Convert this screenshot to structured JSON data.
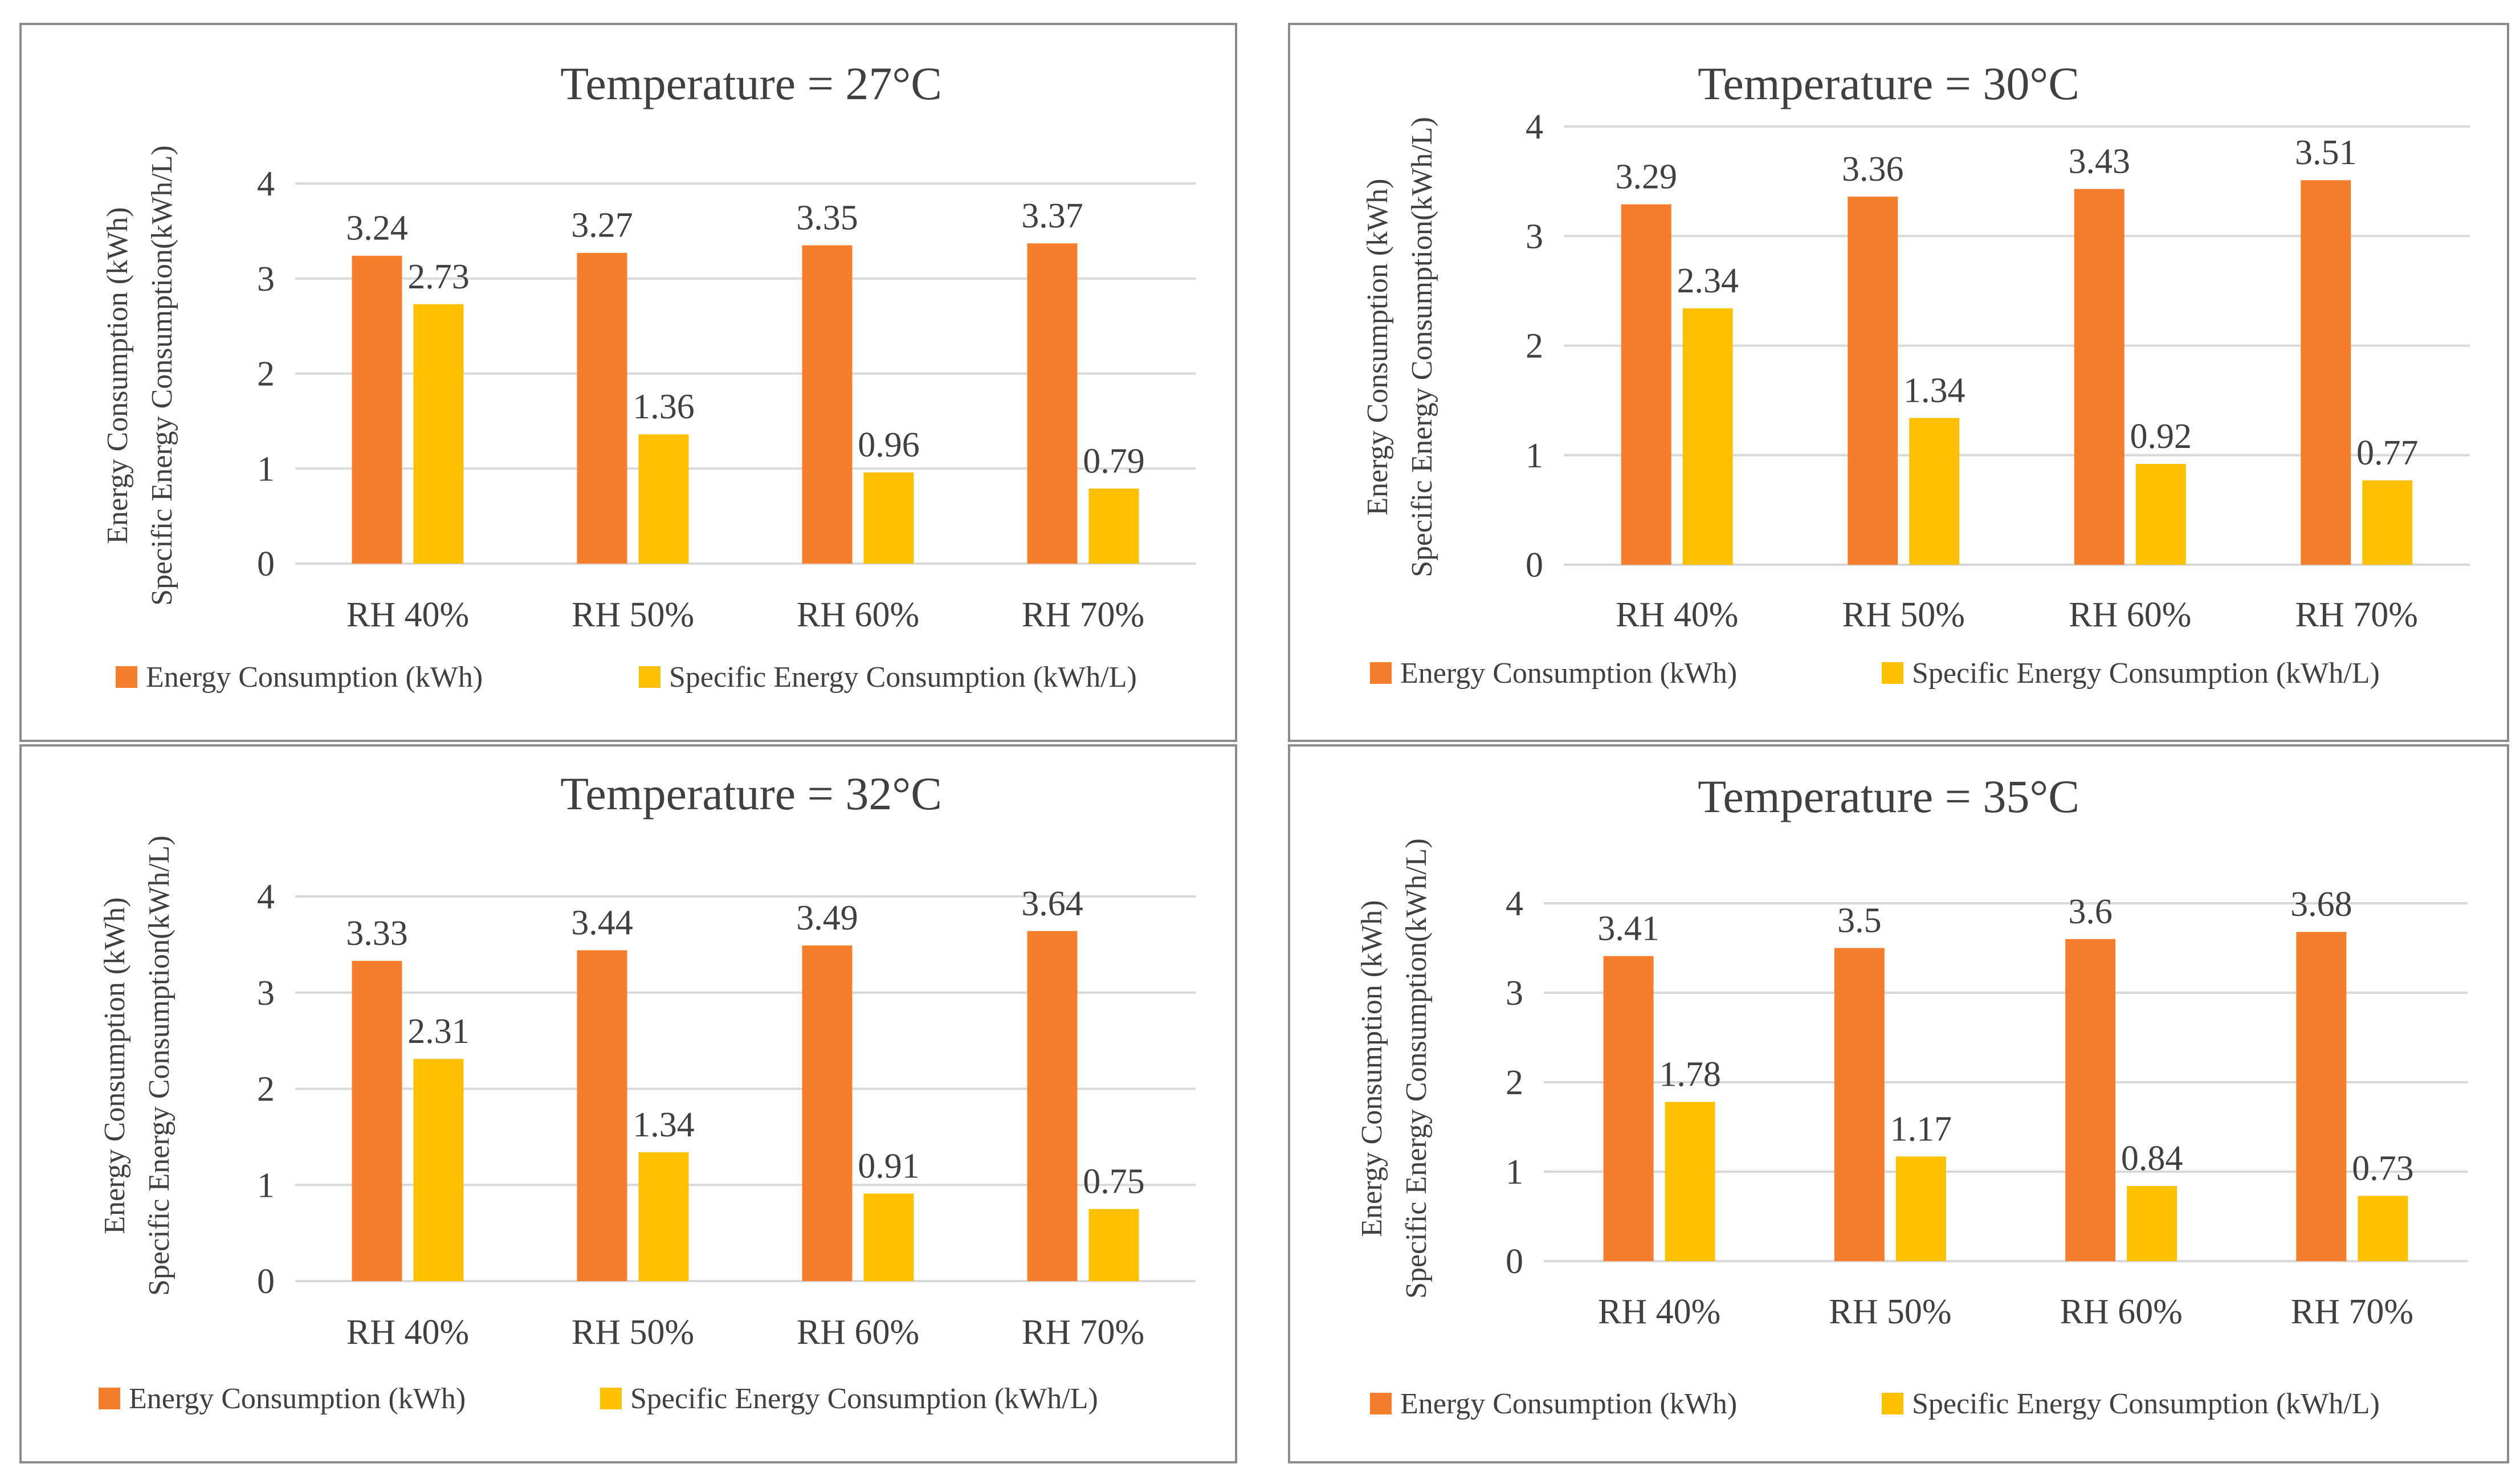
{
  "chart_data": [
    {
      "type": "bar",
      "title": "Temperature = 27°C",
      "ylabel_lines": [
        "Energy Consumption (kWh)",
        "Specific Energy Consumption(kWh/L)"
      ],
      "xlabel": "",
      "categories": [
        "RH 40%",
        "RH 50%",
        "RH 60%",
        "RH 70%"
      ],
      "ylim": [
        0,
        4
      ],
      "yticks": [
        0,
        1,
        2,
        3,
        4
      ],
      "grid": true,
      "legend_position": "bottom",
      "series": [
        {
          "name": "Energy Consumption (kWh)",
          "color": "#f47e2c",
          "values": [
            3.24,
            3.27,
            3.35,
            3.37
          ],
          "labels": [
            "3.24",
            "3.27",
            "3.35",
            "3.37"
          ]
        },
        {
          "name": "Specific Energy Consumption (kWh/L)",
          "color": "#ffc000",
          "values": [
            2.73,
            1.36,
            0.96,
            0.79
          ],
          "labels": [
            "2.73",
            "1.36",
            "0.96",
            "0.79"
          ]
        }
      ]
    },
    {
      "type": "bar",
      "title": "Temperature = 30°C",
      "ylabel_lines": [
        "Energy Consumption (kWh)",
        "Specific Energy Consumption(kWh/L)"
      ],
      "xlabel": "",
      "categories": [
        "RH 40%",
        "RH 50%",
        "RH 60%",
        "RH 70%"
      ],
      "ylim": [
        0,
        4
      ],
      "yticks": [
        0,
        1,
        2,
        3,
        4
      ],
      "grid": true,
      "legend_position": "bottom",
      "series": [
        {
          "name": "Energy Consumption (kWh)",
          "color": "#f47e2c",
          "values": [
            3.29,
            3.36,
            3.43,
            3.51
          ],
          "labels": [
            "3.29",
            "3.36",
            "3.43",
            "3.51"
          ]
        },
        {
          "name": "Specific Energy Consumption (kWh/L)",
          "color": "#ffc000",
          "values": [
            2.34,
            1.34,
            0.92,
            0.77
          ],
          "labels": [
            "2.34",
            "1.34",
            "0.92",
            "0.77"
          ]
        }
      ]
    },
    {
      "type": "bar",
      "title": "Temperature = 32°C",
      "ylabel_lines": [
        "Energy Consumption (kWh)",
        "Specific Energy Consumption(kWh/L)"
      ],
      "xlabel": "",
      "categories": [
        "RH 40%",
        "RH 50%",
        "RH 60%",
        "RH 70%"
      ],
      "ylim": [
        0,
        4
      ],
      "yticks": [
        0,
        1,
        2,
        3,
        4
      ],
      "grid": true,
      "legend_position": "bottom",
      "series": [
        {
          "name": "Energy Consumption (kWh)",
          "color": "#f47e2c",
          "values": [
            3.33,
            3.44,
            3.49,
            3.64
          ],
          "labels": [
            "3.33",
            "3.44",
            "3.49",
            "3.64"
          ]
        },
        {
          "name": "Specific Energy Consumption (kWh/L)",
          "color": "#ffc000",
          "values": [
            2.31,
            1.34,
            0.91,
            0.75
          ],
          "labels": [
            "2.31",
            "1.34",
            "0.91",
            "0.75"
          ]
        }
      ]
    },
    {
      "type": "bar",
      "title": "Temperature = 35°C",
      "ylabel_lines": [
        "Energy Consumption (kWh)",
        "Specific Energy Consumption(kWh/L)"
      ],
      "xlabel": "",
      "categories": [
        "RH 40%",
        "RH 50%",
        "RH 60%",
        "RH 70%"
      ],
      "ylim": [
        0,
        4
      ],
      "yticks": [
        0,
        1,
        2,
        3,
        4
      ],
      "grid": true,
      "legend_position": "bottom",
      "series": [
        {
          "name": "Energy Consumption (kWh)",
          "color": "#f47e2c",
          "values": [
            3.41,
            3.5,
            3.6,
            3.68
          ],
          "labels": [
            "3.41",
            "3.5",
            "3.6",
            "3.68"
          ]
        },
        {
          "name": "Specific Energy Consumption (kWh/L)",
          "color": "#ffc000",
          "values": [
            1.78,
            1.17,
            0.84,
            0.73
          ],
          "labels": [
            "1.78",
            "1.17",
            "0.84",
            "0.73"
          ]
        }
      ]
    }
  ]
}
